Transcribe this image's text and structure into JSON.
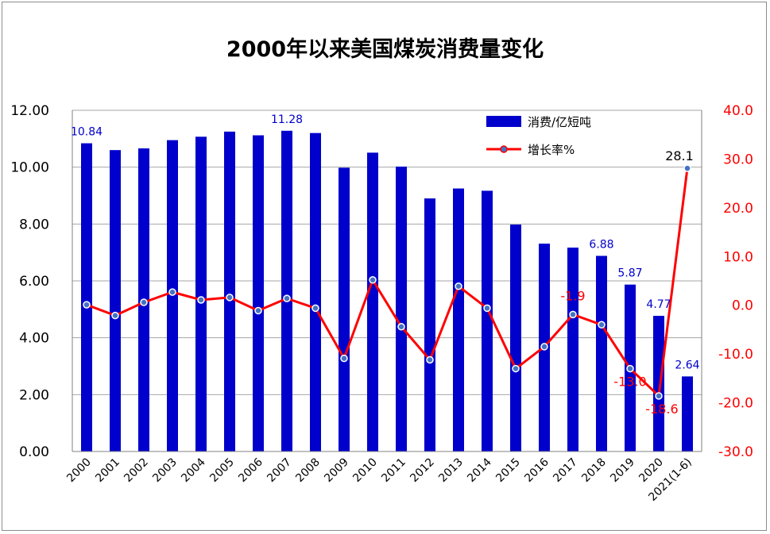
{
  "title": "2000年以来美国煤炭消费量变化",
  "chart_data": {
    "type": "bar+line",
    "categories": [
      "2000",
      "2001",
      "2002",
      "2003",
      "2004",
      "2005",
      "2006",
      "2007",
      "2008",
      "2009",
      "2010",
      "2011",
      "2012",
      "2013",
      "2014",
      "2015",
      "2016",
      "2017",
      "2018",
      "2019",
      "2020",
      "2021(1-6)"
    ],
    "series": [
      {
        "name": "消费/亿短吨",
        "type": "bar",
        "axis": "left",
        "color": "#0000cc",
        "values": [
          10.84,
          10.6,
          10.66,
          10.95,
          11.07,
          11.25,
          11.12,
          11.28,
          11.2,
          9.98,
          10.51,
          10.02,
          8.9,
          9.25,
          9.17,
          7.98,
          7.31,
          7.17,
          6.88,
          5.87,
          4.77,
          2.64
        ]
      },
      {
        "name": "增长率%",
        "type": "line",
        "axis": "right",
        "color": "#ff0000",
        "marker_color": "#4472c4",
        "values": [
          0.1,
          -2.1,
          0.6,
          2.7,
          1.1,
          1.6,
          -1.1,
          1.4,
          -0.6,
          -10.9,
          5.2,
          -4.4,
          -11.2,
          3.9,
          -0.6,
          -13.0,
          -8.5,
          -1.9,
          -4.0,
          -13.0,
          -18.6,
          28.1
        ]
      }
    ],
    "bar_data_labels": [
      {
        "index": 0,
        "text": "10.84"
      },
      {
        "index": 7,
        "text": "11.28"
      },
      {
        "index": 18,
        "text": "6.88"
      },
      {
        "index": 19,
        "text": "5.87"
      },
      {
        "index": 20,
        "text": "4.77"
      },
      {
        "index": 21,
        "text": "2.64"
      }
    ],
    "line_data_labels": [
      {
        "index": 17,
        "text": "-1.9"
      },
      {
        "index": 19,
        "text": "-13.0"
      },
      {
        "index": 20,
        "text": "-18.6"
      },
      {
        "index": 21,
        "text": "28.1"
      }
    ],
    "y_left": {
      "min": 0,
      "max": 12,
      "step": 2,
      "tick_labels": [
        "0.00",
        "2.00",
        "4.00",
        "6.00",
        "8.00",
        "10.00",
        "12.00"
      ]
    },
    "y_right": {
      "min": -30,
      "max": 40,
      "step": 10,
      "tick_labels": [
        "-30.0",
        "-20.0",
        "-10.0",
        "0.0",
        "10.0",
        "20.0",
        "30.0",
        "40.0"
      ]
    },
    "grid": true,
    "legend_position": "top-right"
  }
}
